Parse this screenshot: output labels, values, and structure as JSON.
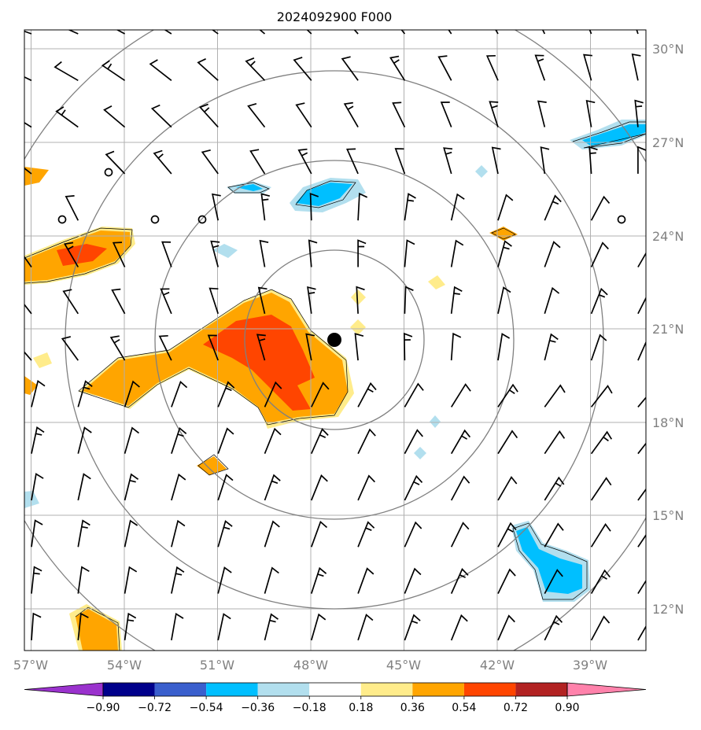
{
  "map": {
    "title": "2024092900 F000",
    "lon_labels": [
      "57°W",
      "54°W",
      "51°W",
      "48°W",
      "45°W",
      "42°W",
      "39°W"
    ],
    "lat_labels": [
      "30°N",
      "27°N",
      "24°N",
      "21°N",
      "18°N",
      "15°N",
      "12°N"
    ],
    "storm_center": {
      "lon": -47.3,
      "lat": 20.7
    },
    "range_rings": "4 concentric rings around storm center",
    "label_color": "#808080",
    "ring_color": "#808080",
    "grid_color": "#b0b0b0"
  },
  "colorbar": {
    "tick_labels": [
      "−0.90",
      "−0.72",
      "−0.54",
      "−0.36",
      "−0.18",
      "0.18",
      "0.36",
      "0.54",
      "0.72",
      "0.90"
    ],
    "colors": [
      "#9a32cd",
      "#00008b",
      "#3a5fcd",
      "#00bfff",
      "#b2dfee",
      "#ffffff",
      "#ffec8b",
      "#ffa500",
      "#ff4500",
      "#b22222",
      "#ff82ab"
    ]
  }
}
